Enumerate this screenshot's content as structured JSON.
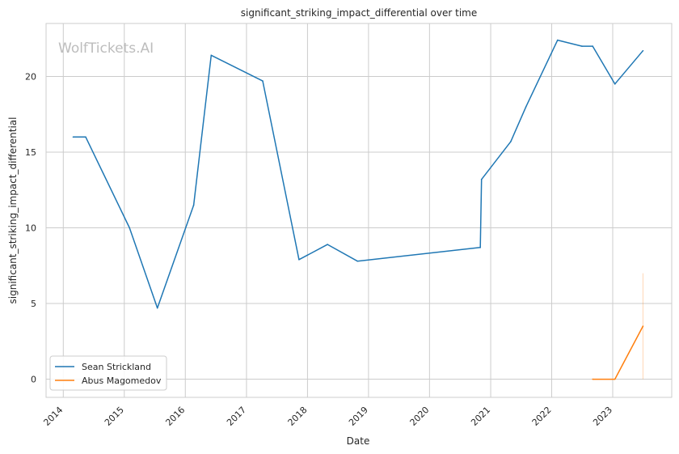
{
  "chart_data": {
    "type": "line",
    "title": "significant_striking_impact_differential over time",
    "xlabel": "Date",
    "ylabel": "significant_striking_impact_differential",
    "watermark": "WolfTickets.AI",
    "x_ticks": [
      "2014",
      "2015",
      "2016",
      "2017",
      "2018",
      "2019",
      "2020",
      "2021",
      "2022",
      "2023"
    ],
    "y_ticks": [
      "0",
      "5",
      "10",
      "15",
      "20"
    ],
    "ylim": [
      -1.2,
      23.5
    ],
    "xlim": [
      "2013-09-20",
      "2023-12-20"
    ],
    "grid": true,
    "legend_position": "lower-left",
    "series": [
      {
        "name": "Sean Strickland",
        "color": "#1f77b4",
        "points": [
          [
            "2014-03-01",
            16.0
          ],
          [
            "2014-05-15",
            16.0
          ],
          [
            "2015-02-01",
            10.0
          ],
          [
            "2015-07-18",
            4.7
          ],
          [
            "2016-02-20",
            11.5
          ],
          [
            "2016-06-04",
            21.4
          ],
          [
            "2017-04-08",
            19.7
          ],
          [
            "2017-11-11",
            7.9
          ],
          [
            "2018-05-01",
            8.9
          ],
          [
            "2018-10-27",
            7.8
          ],
          [
            "2020-10-31",
            8.7
          ],
          [
            "2020-11-07",
            13.2
          ],
          [
            "2021-05-01",
            15.7
          ],
          [
            "2021-07-31",
            18.0
          ],
          [
            "2022-02-05",
            22.4
          ],
          [
            "2022-07-01",
            22.0
          ],
          [
            "2022-09-03",
            22.0
          ],
          [
            "2023-01-14",
            19.5
          ],
          [
            "2023-07-01",
            21.7
          ]
        ]
      },
      {
        "name": "Abus Magomedov",
        "color": "#ff7f0e",
        "points": [
          [
            "2022-09-03",
            0.0
          ],
          [
            "2023-01-14",
            0.0
          ],
          [
            "2023-07-01",
            3.5
          ]
        ],
        "band": {
          "x": "2023-07-01",
          "low": 0.0,
          "high": 7.0
        }
      }
    ]
  }
}
